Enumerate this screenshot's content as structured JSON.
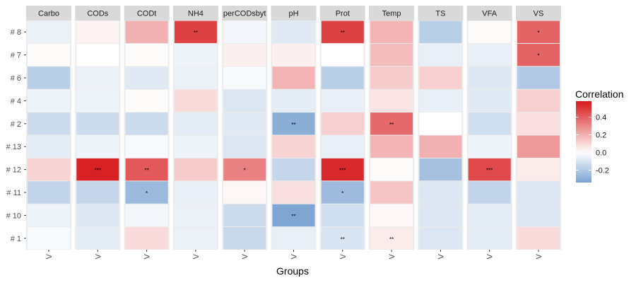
{
  "chart_data": {
    "type": "heatmap",
    "xlabel": "Groups",
    "facet_tick_label": "V",
    "facets": [
      "Carbo",
      "CODs",
      "CODt",
      "NH4",
      "perCODsbyt",
      "pH",
      "Prot",
      "Temp",
      "TS",
      "VFA",
      "VS"
    ],
    "rows": [
      "# 8",
      "# 7",
      "# 6",
      "# 4",
      "# 2",
      "# 13",
      "# 12",
      "# 11",
      "# 10",
      "# 1"
    ],
    "values": [
      [
        -0.05,
        0.03,
        0.2,
        0.48,
        -0.03,
        -0.08,
        0.48,
        0.19,
        -0.18,
        0.01,
        0.39
      ],
      [
        0.01,
        0.0,
        0.01,
        -0.04,
        0.04,
        0.04,
        0.0,
        0.17,
        -0.06,
        -0.06,
        0.39
      ],
      [
        -0.18,
        -0.05,
        -0.08,
        -0.05,
        -0.02,
        0.19,
        -0.18,
        0.13,
        0.12,
        -0.09,
        -0.2
      ],
      [
        -0.04,
        -0.04,
        0.01,
        0.09,
        -0.09,
        -0.07,
        -0.06,
        0.07,
        -0.06,
        -0.08,
        0.12
      ],
      [
        -0.13,
        -0.13,
        -0.13,
        -0.07,
        -0.08,
        -0.3,
        0.12,
        0.38,
        0.0,
        -0.12,
        0.08
      ],
      [
        -0.07,
        -0.04,
        -0.02,
        -0.04,
        -0.09,
        0.11,
        -0.06,
        0.19,
        0.2,
        -0.04,
        0.26
      ],
      [
        0.11,
        0.56,
        0.42,
        0.13,
        0.32,
        -0.15,
        0.54,
        0.01,
        -0.23,
        0.46,
        0.05
      ],
      [
        -0.16,
        -0.15,
        -0.26,
        -0.06,
        0.02,
        0.08,
        -0.25,
        0.15,
        -0.09,
        -0.16,
        -0.09
      ],
      [
        -0.04,
        -0.09,
        -0.03,
        -0.05,
        -0.13,
        -0.33,
        -0.12,
        0.02,
        -0.09,
        -0.07,
        -0.09
      ],
      [
        -0.02,
        -0.07,
        0.09,
        -0.05,
        -0.14,
        -0.06,
        -0.1,
        0.05,
        -0.09,
        -0.07,
        0.09
      ]
    ],
    "significance": [
      [
        "",
        "",
        "",
        "**",
        "",
        "",
        "**",
        "",
        "",
        "",
        "*"
      ],
      [
        "",
        "",
        "",
        "",
        "",
        "",
        "",
        "",
        "",
        "",
        "*"
      ],
      [
        "",
        "",
        "",
        "",
        "",
        "",
        "",
        "",
        "",
        "",
        ""
      ],
      [
        "",
        "",
        "",
        "",
        "",
        "",
        "",
        "",
        "",
        "",
        ""
      ],
      [
        "",
        "",
        "",
        "",
        "",
        "**",
        "",
        "**",
        "",
        "",
        ""
      ],
      [
        "",
        "",
        "",
        "",
        "",
        "",
        "",
        "",
        "",
        "",
        ""
      ],
      [
        "",
        "***",
        "**",
        "",
        "*",
        "",
        "***",
        "",
        "",
        "***",
        ""
      ],
      [
        "",
        "",
        "*",
        "",
        "",
        "",
        "*",
        "",
        "",
        "",
        ""
      ],
      [
        "",
        "",
        "",
        "",
        "",
        "**",
        "",
        "",
        "",
        "",
        ""
      ],
      [
        "",
        "",
        "",
        "",
        "",
        "",
        "**",
        "**",
        "",
        "",
        ""
      ]
    ],
    "legend": {
      "title": "Correlation",
      "ticks": [
        0.4,
        0.2,
        0.0,
        -0.2
      ],
      "tick_labels": [
        "0.4",
        "0.2",
        "0.0",
        "-0.2"
      ],
      "range": [
        -0.34,
        0.58
      ],
      "placement": "right"
    },
    "colors": {
      "low": "#7ba3d1",
      "mid": "#ffffff",
      "high": "#d7191c",
      "panel_background": "#ebebeb",
      "strip_background": "#d9d9d9"
    }
  }
}
